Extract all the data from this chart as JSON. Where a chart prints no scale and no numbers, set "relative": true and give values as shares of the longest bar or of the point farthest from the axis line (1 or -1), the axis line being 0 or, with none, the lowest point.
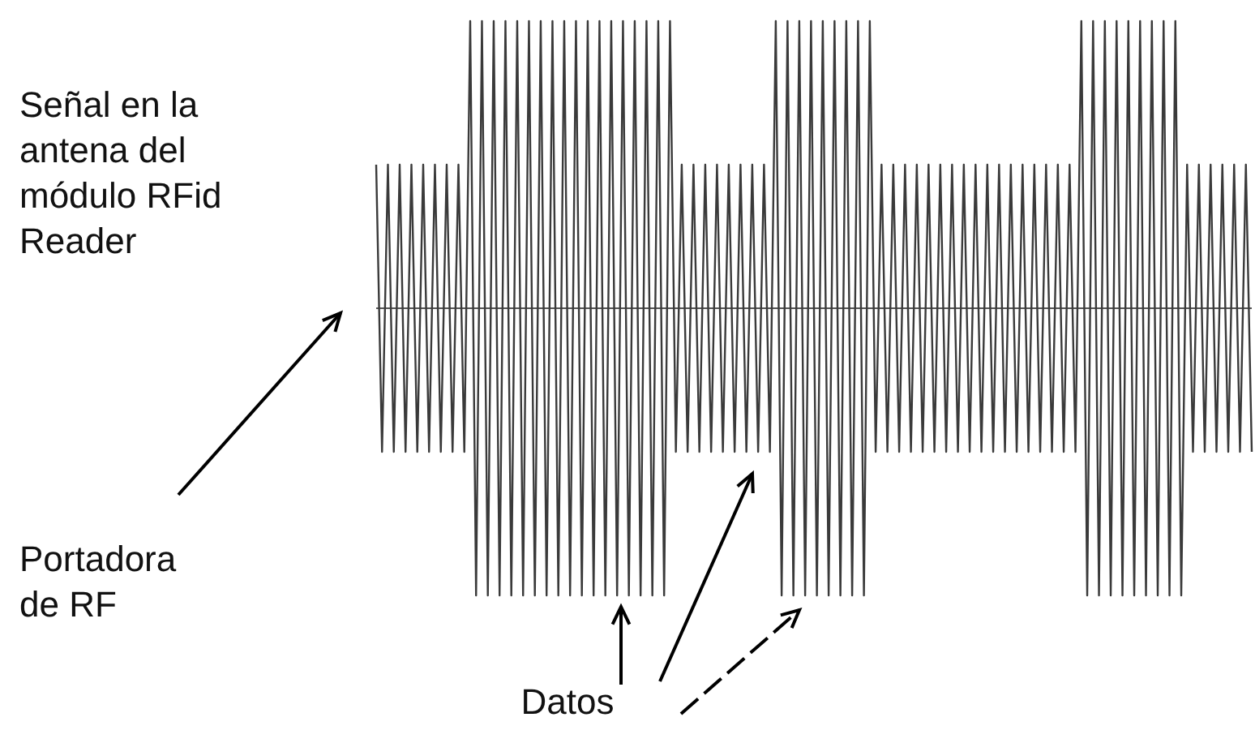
{
  "chart_data": {
    "type": "line",
    "relative": true,
    "color": "#3a3a3a",
    "marker": "none",
    "line_style": "solid",
    "categories": [
      null,
      null,
      null,
      null,
      null,
      null,
      null,
      null,
      null,
      null,
      null,
      null,
      null,
      null,
      null,
      null,
      null,
      null,
      null,
      null,
      null,
      null,
      null,
      null,
      null,
      null,
      null,
      null,
      null,
      null,
      null,
      null,
      null,
      null,
      null,
      null,
      null,
      null,
      null,
      null,
      null,
      null,
      null,
      null,
      null,
      null,
      null,
      null,
      null,
      null,
      null,
      null,
      null,
      null,
      null,
      null,
      null,
      null,
      null,
      null,
      null,
      null,
      null,
      null,
      null,
      null,
      null,
      null,
      null,
      null,
      null,
      null,
      null,
      null,
      null,
      null,
      null,
      null,
      null,
      null,
      null,
      null,
      null,
      null,
      null,
      null,
      null,
      null,
      null,
      null,
      null,
      null,
      null,
      null,
      null,
      null,
      null,
      null,
      null,
      null,
      null,
      null,
      null,
      null,
      null,
      null,
      null,
      null,
      null,
      null,
      null,
      null,
      null,
      null,
      null,
      null,
      null,
      null,
      null,
      null,
      null,
      null,
      null,
      null,
      null,
      null,
      null,
      null,
      null,
      null,
      null,
      null,
      null,
      null,
      null,
      null,
      null,
      null,
      null,
      null,
      null,
      null,
      null,
      null,
      null,
      null,
      null,
      null,
      null,
      null
    ],
    "values": [
      0.5,
      -0.5,
      0.5,
      -0.5,
      0.5,
      -0.5,
      0.5,
      -0.5,
      0.5,
      -0.5,
      0.5,
      -0.5,
      0.5,
      -0.5,
      0.5,
      -0.5,
      1,
      -1,
      1,
      -1,
      1,
      -1,
      1,
      -1,
      1,
      -1,
      1,
      -1,
      1,
      -1,
      1,
      -1,
      1,
      -1,
      1,
      -1,
      1,
      -1,
      1,
      -1,
      1,
      -1,
      1,
      -1,
      1,
      -1,
      1,
      -1,
      1,
      -1,
      1,
      -0.5,
      0.5,
      -0.5,
      0.5,
      -0.5,
      0.5,
      -0.5,
      0.5,
      -0.5,
      0.5,
      -0.5,
      0.5,
      -0.5,
      0.5,
      -0.5,
      0.5,
      -0.5,
      1,
      -1,
      1,
      -1,
      1,
      -1,
      1,
      -1,
      1,
      -1,
      1,
      -1,
      1,
      -1,
      1,
      -1,
      1,
      -0.5,
      0.5,
      -0.5,
      0.5,
      -0.5,
      0.5,
      -0.5,
      0.5,
      -0.5,
      0.5,
      -0.5,
      0.5,
      -0.5,
      0.5,
      -0.5,
      0.5,
      -0.5,
      0.5,
      -0.5,
      0.5,
      -0.5,
      0.5,
      -0.5,
      0.5,
      -0.5,
      0.5,
      -0.5,
      0.5,
      -0.5,
      0.5,
      -0.5,
      0.5,
      -0.5,
      0.5,
      -0.5,
      1,
      -1,
      1,
      -1,
      1,
      -1,
      1,
      -1,
      1,
      -1,
      1,
      -1,
      1,
      -1,
      1,
      -1,
      1,
      -1,
      0.5,
      -0.5,
      0.5,
      -0.5,
      0.5,
      -0.5,
      0.5,
      -0.5,
      0.5,
      -0.5,
      0.5,
      -0.5
    ],
    "annotations": [
      "Señal en la antena del módulo RFid Reader",
      "Portadora de RF",
      "Datos"
    ]
  }
}
